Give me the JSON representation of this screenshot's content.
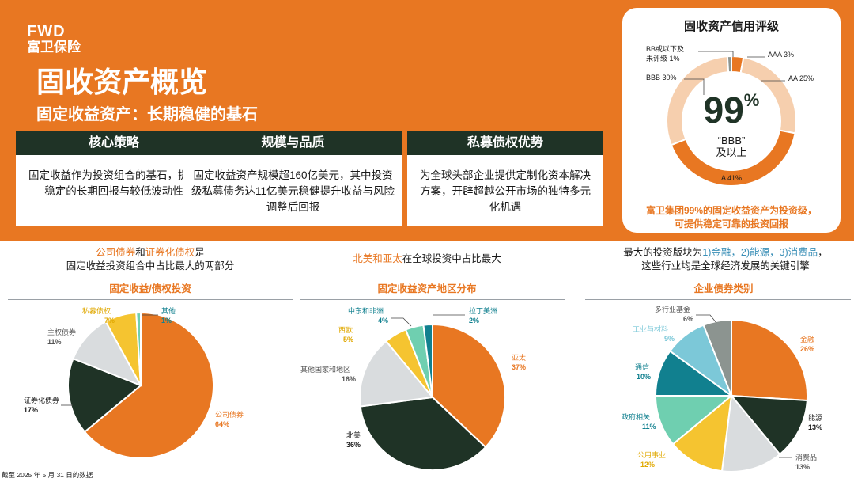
{
  "logo": {
    "en": "FWD",
    "zh": "富卫保险"
  },
  "title": "固收资产概览",
  "subtitle": "固定收益资产：长期稳健的基石",
  "boxes": [
    {
      "header": "核心策略",
      "body": "固定收益作为投资组合的基石，提供稳定的长期回报与较低波动性"
    },
    {
      "header": "规模与品质",
      "body": "固定收益资产规模超160亿美元，其中投资级私募债务达11亿美元稳健提升收益与风险调整后回报"
    },
    {
      "header": "私募债权优势",
      "body": "为全球头部企业提供定制化资本解决方案，开辟超越公开市场的独特多元化机遇"
    }
  ],
  "rating": {
    "title": "固收资产信用评级",
    "big_value": "99",
    "big_unit": "%",
    "big_sub1": "“BBB”",
    "big_sub2": "及以上",
    "note1": "富卫集团99%的固定收益资产为投资级，",
    "note2": "可提供稳定可靠的投资回报"
  },
  "colors": {
    "orange": "#E87722",
    "peach": "#F2B98A",
    "light_peach": "#F6CFAE",
    "dark_green": "#1F3326",
    "light_gray": "#D9DCDE",
    "yellow": "#F5C430",
    "mint": "#6FCFB0",
    "teal": "#11808F",
    "light_blue": "#7CC8D8",
    "gray": "#8C9490",
    "blue_text": "#3A8FB7"
  },
  "left_note": {
    "hl1": "公司债券",
    "mid1": "和",
    "hl2": "证券化债权",
    "rest1": "是",
    "line2": "固定收益投资组合中占比最大的两部分"
  },
  "mid_note": {
    "hl": "北美和亚太",
    "rest": "在全球投资中占比最大"
  },
  "right_note": {
    "pre": "最大的投资版块为",
    "hl": "1)金融，2)能源，3)消费品",
    "end": "，",
    "line2": "这些行业均是全球经济发展的关键引擎"
  },
  "footnote": "截至 2025 年 5 月 31 日的数据",
  "chart_data": [
    {
      "type": "pie",
      "title": "固收资产信用评级",
      "categories": [
        "AAA",
        "AA",
        "A",
        "BBB",
        "BB或以下及未评级"
      ],
      "labels": [
        "AAA 3%",
        "AA 25%",
        "A 41%",
        "BBB 30%",
        "BB或以下及未评级 1%"
      ],
      "values": [
        3,
        25,
        41,
        30,
        1
      ]
    },
    {
      "type": "pie",
      "title": "固定收益/债权投资",
      "categories": [
        "公司债券",
        "证券化债券",
        "主权债券",
        "私募债权",
        "其他"
      ],
      "pct_labels": [
        "64%",
        "17%",
        "11%",
        "7%",
        "1%"
      ],
      "values": [
        64,
        17,
        11,
        7,
        1
      ]
    },
    {
      "type": "pie",
      "title": "固定收益资产地区分布",
      "categories": [
        "亚太",
        "北美",
        "其他国家和地区",
        "西欧",
        "中东和非洲",
        "拉丁美洲"
      ],
      "pct_labels": [
        "37%",
        "36%",
        "16%",
        "5%",
        "4%",
        "2%"
      ],
      "values": [
        37,
        36,
        16,
        5,
        4,
        2
      ]
    },
    {
      "type": "pie",
      "title": "企业债券类别",
      "categories": [
        "金融",
        "能源",
        "消费品",
        "公用事业",
        "政府相关",
        "通信",
        "工业与材料",
        "多行业基金"
      ],
      "pct_labels": [
        "26%",
        "13%",
        "13%",
        "12%",
        "11%",
        "10%",
        "9%",
        "6%"
      ],
      "values": [
        26,
        13,
        13,
        12,
        11,
        10,
        9,
        6
      ]
    }
  ]
}
